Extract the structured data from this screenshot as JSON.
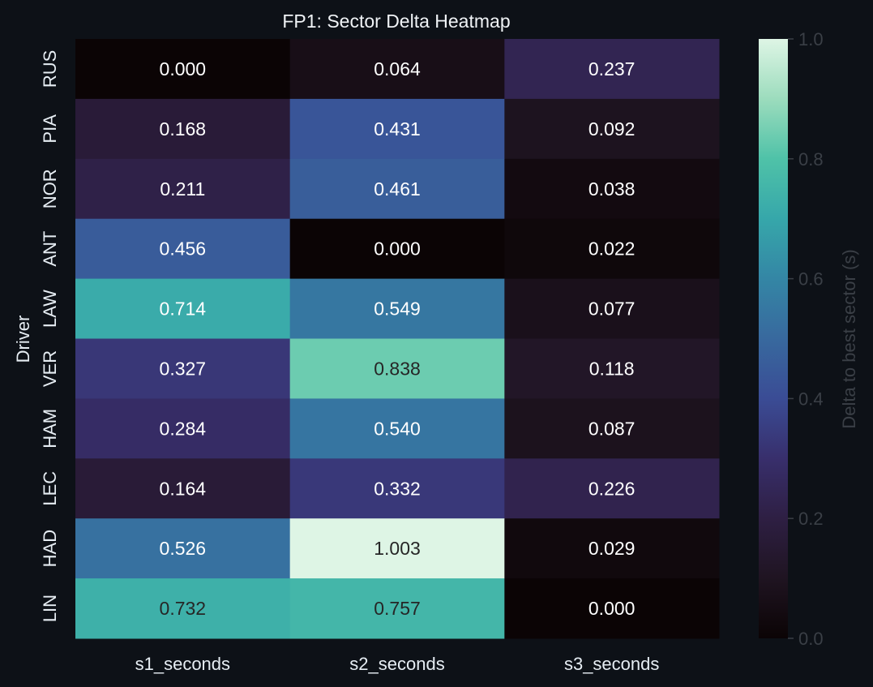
{
  "chart_data": {
    "type": "heatmap",
    "title": "FP1: Sector Delta Heatmap",
    "xlabel": "",
    "ylabel": "Driver",
    "x_categories": [
      "s1_seconds",
      "s2_seconds",
      "s3_seconds"
    ],
    "y_categories": [
      "RUS",
      "PIA",
      "NOR",
      "ANT",
      "LAW",
      "VER",
      "HAM",
      "LEC",
      "HAD",
      "LIN"
    ],
    "values": [
      [
        0.0,
        0.064,
        0.237
      ],
      [
        0.168,
        0.431,
        0.092
      ],
      [
        0.211,
        0.461,
        0.038
      ],
      [
        0.456,
        0.0,
        0.022
      ],
      [
        0.714,
        0.549,
        0.077
      ],
      [
        0.327,
        0.838,
        0.118
      ],
      [
        0.284,
        0.54,
        0.087
      ],
      [
        0.164,
        0.332,
        0.226
      ],
      [
        0.526,
        1.003,
        0.029
      ],
      [
        0.732,
        0.757,
        0.0
      ]
    ],
    "value_format": "0.000",
    "colorbar": {
      "label": "Delta to best sector (s)",
      "range": [
        0.0,
        1.0
      ],
      "ticks": [
        "0.0",
        "0.2",
        "0.4",
        "0.6",
        "0.8",
        "1.0"
      ],
      "colormap": "mako"
    },
    "grid": false,
    "background": "#0d1117"
  }
}
